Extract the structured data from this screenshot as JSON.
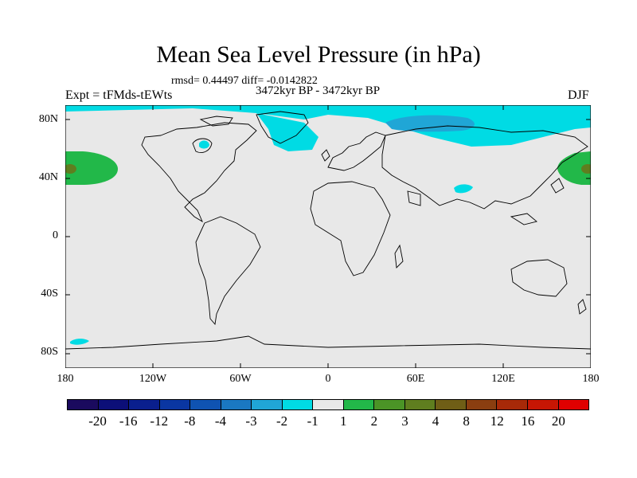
{
  "title": "Mean Sea Level Pressure (in hPa)",
  "stats": "rmsd= 0.44497 diff= -0.0142822",
  "period": "3472kyr BP - 3472kyr BP",
  "experiment": "Expt = tFMds-tEWts",
  "season": "DJF",
  "map": {
    "projection": "cylindrical equidistant",
    "lon_range": [
      -180,
      180
    ],
    "lat_range": [
      -90,
      90
    ],
    "lat_labels": [
      "80N",
      "40N",
      "0",
      "40S",
      "80S"
    ],
    "lon_labels": [
      "180",
      "120W",
      "60W",
      "0",
      "60E",
      "120E",
      "180"
    ],
    "background_value_class": "-1 to 1",
    "anomaly_regions": [
      {
        "name": "Arctic / North Atlantic low",
        "class": "-2 to -1"
      },
      {
        "name": "Siberian Arctic deeper low",
        "class": "-3 to -2"
      },
      {
        "name": "North Pacific high",
        "class": "1 to 2"
      },
      {
        "name": "North Pacific core",
        "class": "3 to 4"
      },
      {
        "name": "Tibet low patch",
        "class": "-2 to -1"
      },
      {
        "name": "Southern Pacific low patch",
        "class": "-2 to -1"
      }
    ]
  },
  "colorbar": {
    "labels": [
      "-20",
      "-16",
      "-12",
      "-8",
      "-4",
      "-3",
      "-2",
      "-1",
      "1",
      "2",
      "3",
      "4",
      "8",
      "12",
      "16",
      "20"
    ],
    "colors": [
      "#1a0a5e",
      "#0c0f78",
      "#0a1f8e",
      "#0a36a2",
      "#0f53b2",
      "#1a78c2",
      "#20a6d6",
      "#00dbe4",
      "#e8e8e8",
      "#22b849",
      "#4b9426",
      "#5f7e1f",
      "#6f5e16",
      "#8a3e10",
      "#a72908",
      "#c71604",
      "#e00000"
    ]
  }
}
